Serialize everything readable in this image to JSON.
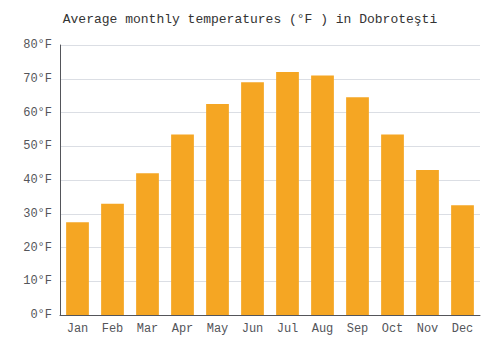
{
  "chart_data": {
    "type": "bar",
    "title": "Average monthly temperatures (°F ) in Dobroteşti",
    "categories": [
      "Jan",
      "Feb",
      "Mar",
      "Apr",
      "May",
      "Jun",
      "Jul",
      "Aug",
      "Sep",
      "Oct",
      "Nov",
      "Dec"
    ],
    "values": [
      27.5,
      33.0,
      42.0,
      53.5,
      62.5,
      69.0,
      72.0,
      71.0,
      64.5,
      53.5,
      43.0,
      32.5
    ],
    "color": "#F5A623",
    "ylim": [
      0,
      80
    ],
    "yticks": [
      {
        "value": 0,
        "label": "0°F"
      },
      {
        "value": 10,
        "label": "10°F"
      },
      {
        "value": 20,
        "label": "20°F"
      },
      {
        "value": 30,
        "label": "30°F"
      },
      {
        "value": 40,
        "label": "40°F"
      },
      {
        "value": 50,
        "label": "50°F"
      },
      {
        "value": 60,
        "label": "60°F"
      },
      {
        "value": 70,
        "label": "70°F"
      },
      {
        "value": 80,
        "label": "80°F"
      }
    ],
    "grid": true
  }
}
